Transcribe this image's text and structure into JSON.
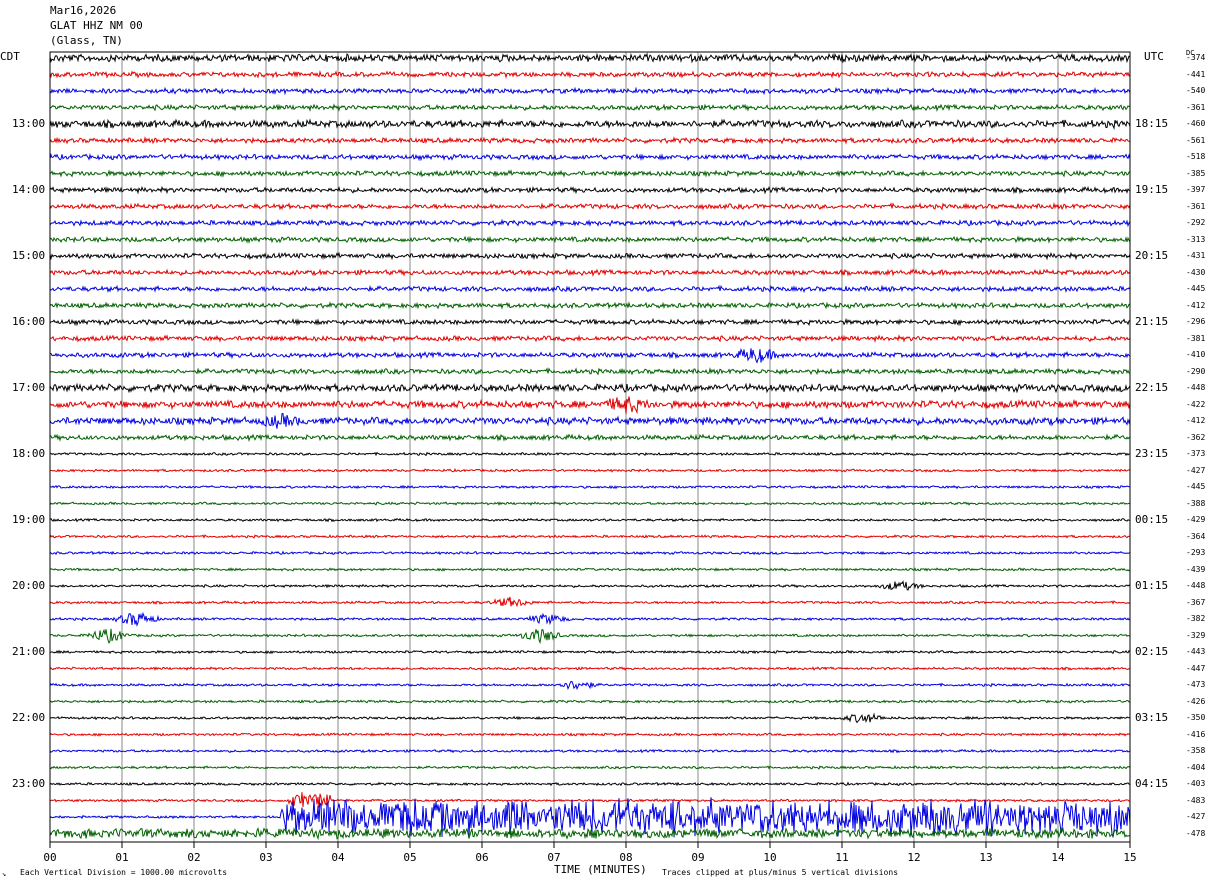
{
  "header": {
    "date": "Mar16,2026",
    "station": "GLAT HHZ NM 00",
    "location": "(Glass, TN)"
  },
  "labels": {
    "cdt": "CDT",
    "utc": "UTC",
    "dc": "DC",
    "xlabel": "TIME (MINUTES)",
    "scale_note": "Each Vertical Division = 1000.00 microvolts",
    "clip_note": "Traces clipped at plus/minus 5 vertical divisions",
    "corner_mark": "↘"
  },
  "chart_data": {
    "type": "line",
    "title": "GLAT HHZ NM 00",
    "xlabel": "TIME (MINUTES)",
    "xlim": [
      0,
      15
    ],
    "x_ticks": [
      "00",
      "01",
      "02",
      "03",
      "04",
      "05",
      "06",
      "07",
      "08",
      "09",
      "10",
      "11",
      "12",
      "13",
      "14",
      "15"
    ],
    "grid": true,
    "trace_colors": [
      "#000000",
      "#e00000",
      "#0000e0",
      "#006000"
    ],
    "cdt_hour_labels": [
      "13:00",
      "14:00",
      "15:00",
      "16:00",
      "17:00",
      "18:00",
      "19:00",
      "20:00",
      "21:00",
      "22:00",
      "23:00"
    ],
    "utc_hour_labels": [
      "18:15",
      "19:15",
      "20:15",
      "21:15",
      "22:15",
      "23:15",
      "00:15",
      "01:15",
      "02:15",
      "03:15",
      "04:15"
    ],
    "dc_offsets": [
      "-374",
      "-441",
      "-540",
      "-361",
      "-460",
      "-561",
      "-518",
      "-385",
      "-397",
      "-361",
      "-292",
      "-313",
      "-431",
      "-430",
      "-445",
      "-412",
      "-296",
      "-381",
      "-410",
      "-290",
      "-448",
      "-422",
      "-412",
      "-362",
      "-373",
      "-427",
      "-445",
      "-388",
      "-429",
      "-364",
      "-293",
      "-439",
      "-448",
      "-367",
      "-382",
      "-329",
      "-443",
      "-447",
      "-473",
      "-426",
      "-350",
      "-416",
      "-358",
      "-404",
      "-403",
      "-483",
      "-427",
      "-478"
    ],
    "trace_amplitude_class": [
      3,
      2,
      2,
      2,
      3,
      2,
      2,
      2,
      2,
      2,
      2,
      2,
      2,
      2,
      2,
      2,
      2,
      2,
      2,
      2,
      3,
      3,
      3,
      2,
      1,
      1,
      1,
      1,
      1,
      1,
      1,
      1,
      1,
      1,
      1,
      1,
      1,
      1,
      1,
      1,
      1,
      1,
      1,
      1,
      1,
      1,
      1,
      3
    ],
    "events": [
      {
        "trace": 18,
        "minute": 9.8,
        "amp": 3
      },
      {
        "trace": 21,
        "minute": 8.0,
        "amp": 3
      },
      {
        "trace": 22,
        "minute": 3.2,
        "amp": 2
      },
      {
        "trace": 34,
        "minute": 1.2,
        "amp": 3
      },
      {
        "trace": 35,
        "minute": 0.8,
        "amp": 3
      },
      {
        "trace": 35,
        "minute": 6.8,
        "amp": 3
      },
      {
        "trace": 34,
        "minute": 6.9,
        "amp": 2
      },
      {
        "trace": 33,
        "minute": 6.4,
        "amp": 2
      },
      {
        "trace": 38,
        "minute": 7.3,
        "amp": 2
      },
      {
        "trace": 40,
        "minute": 11.3,
        "amp": 2
      },
      {
        "trace": 32,
        "minute": 11.8,
        "amp": 2
      }
    ],
    "late_storm": [
      {
        "trace": 46,
        "start": 3.2,
        "end": 15,
        "amp": 5
      },
      {
        "trace": 45,
        "start": 3.3,
        "end": 3.9,
        "amp": 2
      }
    ]
  }
}
